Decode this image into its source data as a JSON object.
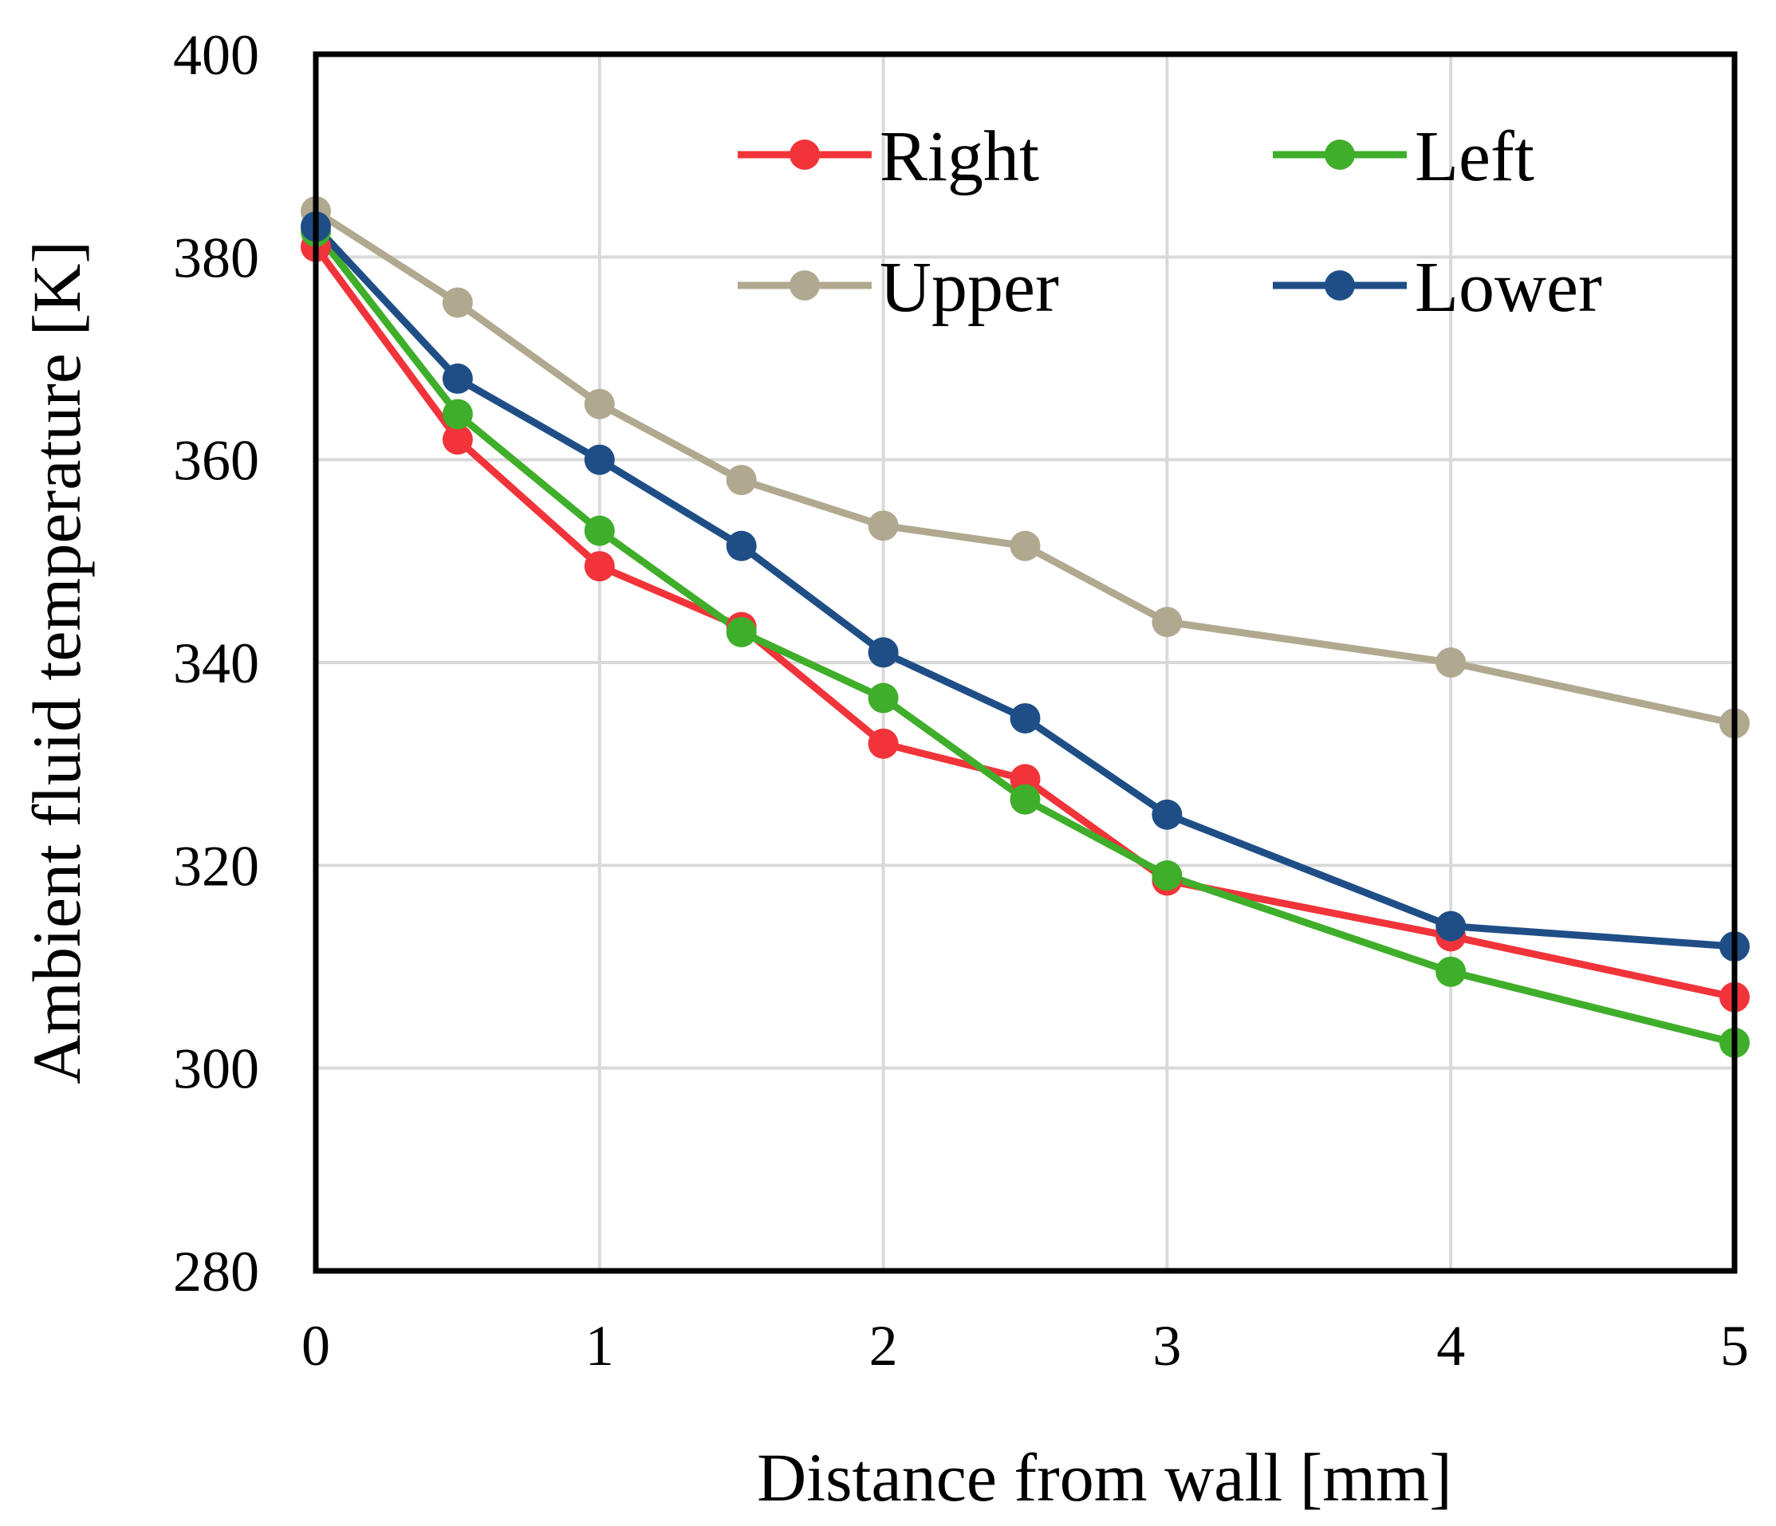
{
  "chart_data": {
    "type": "line",
    "title": "",
    "xlabel": "Distance from wall [mm]",
    "ylabel": "Ambient fluid temperature [K]",
    "xlim": [
      0,
      5
    ],
    "ylim": [
      280,
      400
    ],
    "x_ticks": [
      0,
      1,
      2,
      3,
      4,
      5
    ],
    "y_ticks": [
      280,
      300,
      320,
      340,
      360,
      380,
      400
    ],
    "grid": true,
    "legend_position": "top-right",
    "series": [
      {
        "name": "Right",
        "color": "#f0343a",
        "x": [
          0,
          0.5,
          1,
          1.5,
          2,
          2.5,
          3,
          4,
          5
        ],
        "values": [
          381,
          362,
          349.5,
          343.5,
          332,
          328.5,
          318.5,
          313,
          307
        ]
      },
      {
        "name": "Left",
        "color": "#3fae2a",
        "x": [
          0,
          0.5,
          1,
          1.5,
          2,
          2.5,
          3,
          4,
          5
        ],
        "values": [
          382.5,
          364.5,
          353,
          343,
          336.5,
          326.5,
          319,
          309.5,
          302.5
        ]
      },
      {
        "name": "Upper",
        "color": "#b0a98f",
        "x": [
          0,
          0.5,
          1,
          1.5,
          2,
          2.5,
          3,
          4,
          5
        ],
        "values": [
          384.5,
          375.5,
          365.5,
          358,
          353.5,
          351.5,
          344,
          340,
          334
        ]
      },
      {
        "name": "Lower",
        "color": "#1f4e87",
        "x": [
          0,
          0.5,
          1,
          1.5,
          2,
          2.5,
          3,
          4,
          5
        ],
        "values": [
          383,
          368,
          360,
          351.5,
          341,
          334.5,
          325,
          314,
          312
        ]
      }
    ]
  }
}
